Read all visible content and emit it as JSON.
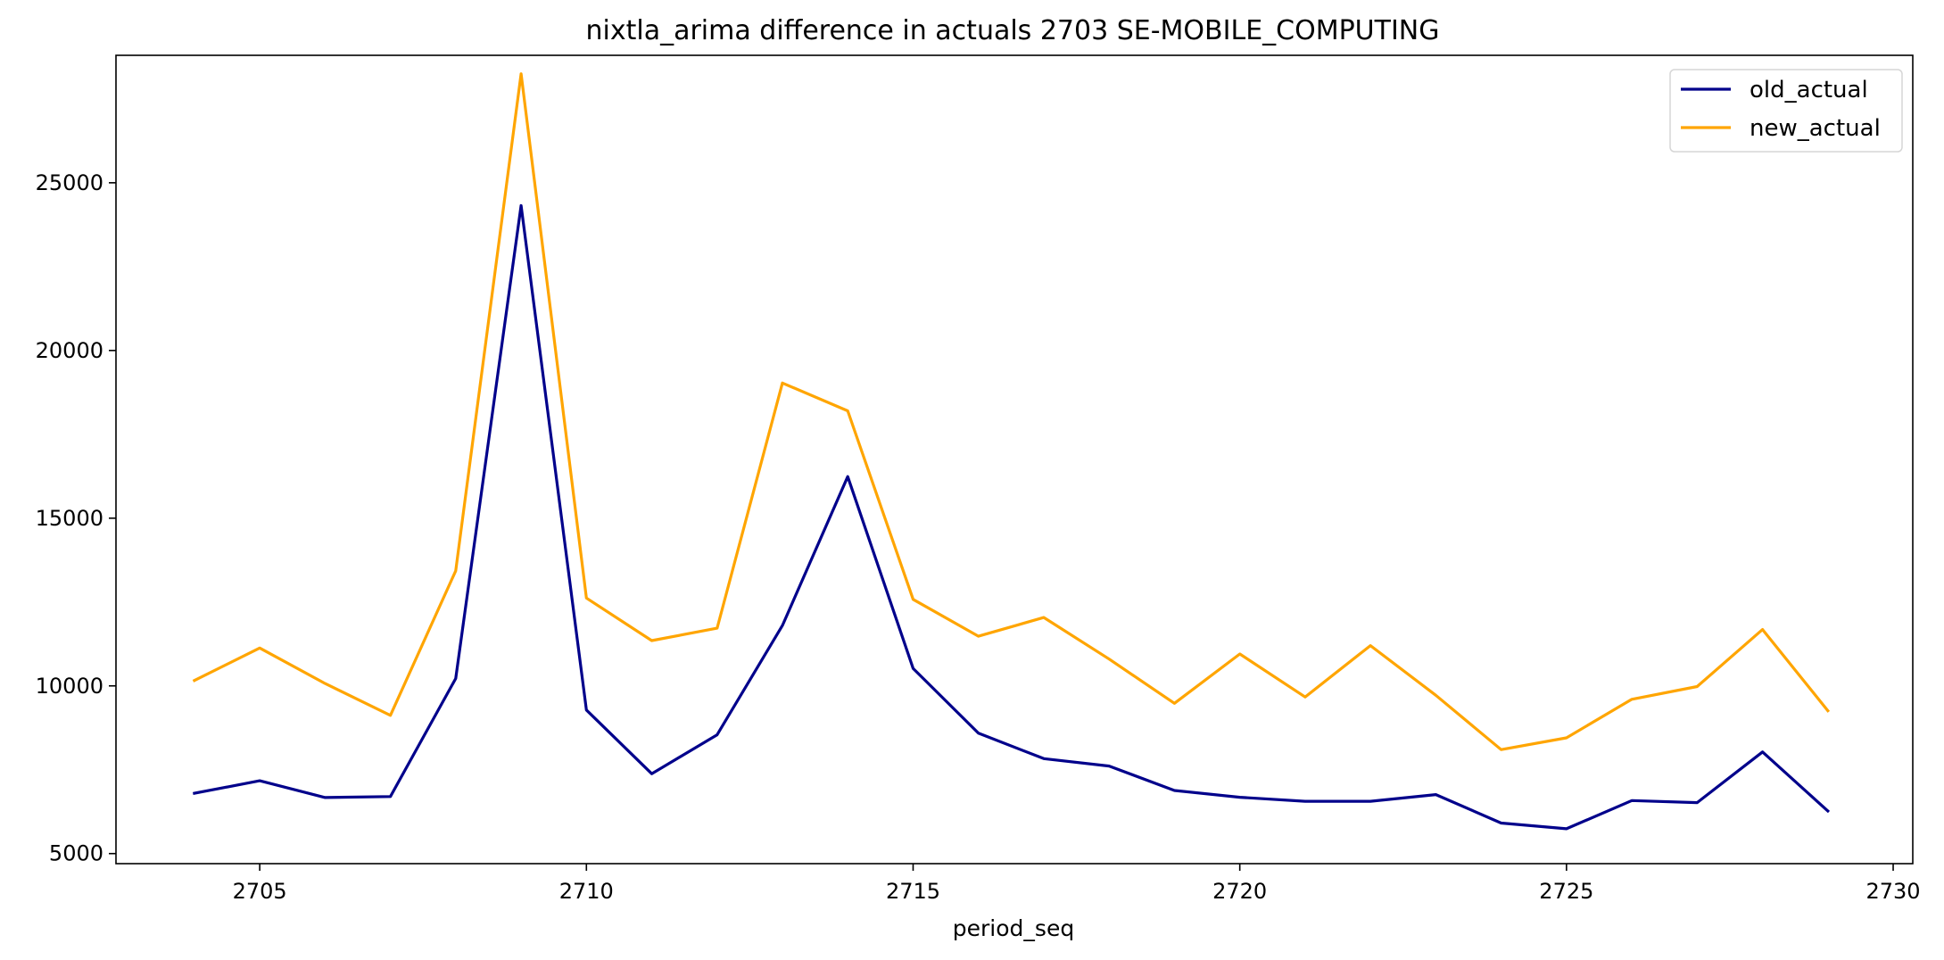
{
  "chart_data": {
    "type": "line",
    "title": "nixtla_arima difference in actuals 2703 SE-MOBILE_COMPUTING",
    "xlabel": "period_seq",
    "ylabel": "",
    "xlim": [
      2702.8,
      2730.3
    ],
    "ylim": [
      4700,
      28800
    ],
    "xticks": [
      2705,
      2710,
      2715,
      2720,
      2725,
      2730
    ],
    "yticks": [
      5000,
      10000,
      15000,
      20000,
      25000
    ],
    "grid": false,
    "legend_position": "top-right",
    "x": [
      2704,
      2705,
      2706,
      2707,
      2708,
      2709,
      2710,
      2711,
      2712,
      2713,
      2714,
      2715,
      2716,
      2717,
      2718,
      2719,
      2720,
      2721,
      2722,
      2723,
      2724,
      2725,
      2726,
      2727,
      2728,
      2729
    ],
    "series": [
      {
        "name": "old_actual",
        "color": "#00008b",
        "values": [
          6800,
          7170,
          6670,
          6700,
          10220,
          24320,
          9280,
          7380,
          8540,
          11800,
          16240,
          10520,
          8590,
          7830,
          7610,
          6880,
          6680,
          6560,
          6560,
          6760,
          5910,
          5740,
          6580,
          6520,
          8030,
          6270
        ]
      },
      {
        "name": "new_actual",
        "color": "#ffa500",
        "values": [
          10160,
          11130,
          10070,
          9120,
          13430,
          28250,
          12620,
          11350,
          11720,
          19030,
          18200,
          12580,
          11480,
          12040,
          10800,
          9480,
          10950,
          9670,
          11200,
          9720,
          8100,
          8450,
          9600,
          9980,
          11680,
          9260
        ]
      }
    ]
  }
}
